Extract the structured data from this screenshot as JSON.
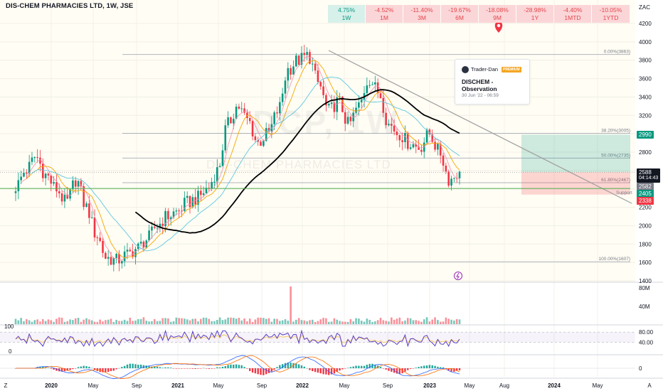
{
  "header": {
    "title": "DIS-CHEM PHARMACIES LTD, 1W, JSE",
    "currency": "ZAC"
  },
  "performance": [
    {
      "value": "4.75%",
      "label": "1W",
      "positive": true
    },
    {
      "value": "-4.52%",
      "label": "1M",
      "positive": false
    },
    {
      "value": "-11.40%",
      "label": "3M",
      "positive": false
    },
    {
      "value": "-19.67%",
      "label": "6M",
      "positive": false
    },
    {
      "value": "-18.08%",
      "label": "9M",
      "positive": false
    },
    {
      "value": "-28.98%",
      "label": "1Y",
      "positive": false
    },
    {
      "value": "-4.40%",
      "label": "1MTD",
      "positive": false
    },
    {
      "value": "-10.05%",
      "label": "1YTD",
      "positive": false
    }
  ],
  "idea_card": {
    "author": "Trader-Dan",
    "badge": "PREMIUM",
    "title": "DISCHEM - Observation",
    "date": "30 Jun '22 - 06:59"
  },
  "watermark": {
    "symbol": "DCP, 1W",
    "name": "DIS-CHEM PHARMACIES LTD"
  },
  "price_tags": {
    "target": "2990",
    "last": "2588",
    "countdown": "04:14:43",
    "current": "2582",
    "support": "2405",
    "stop": "2338"
  },
  "colors": {
    "up": "#089981",
    "down": "#f23645",
    "ma_black": "#000000",
    "ma_blue": "#5fc7e0",
    "ma_orange": "#f7a600",
    "ma_pink": "#f48fb1",
    "support_line": "#4caf50",
    "trendline": "#9e9e9e"
  },
  "chart_data": {
    "type": "candlestick",
    "y_axis_ticks": [
      1400,
      1600,
      1800,
      2000,
      2200,
      2400,
      2600,
      2800,
      3000,
      3200,
      3400,
      3600,
      3800,
      4000,
      4200
    ],
    "ylim": [
      1400,
      4200
    ],
    "x_axis_labels": [
      "Z",
      "2020",
      "May",
      "Sep",
      "2021",
      "May",
      "Sep",
      "2022",
      "May",
      "Sep",
      "2023",
      "May",
      "Aug",
      "2024",
      "May",
      "A"
    ],
    "fibonacci": [
      {
        "level": "0.00%",
        "price": 3863
      },
      {
        "level": "38.20%",
        "price": 3005
      },
      {
        "level": "50.00%",
        "price": 2735
      },
      {
        "level": "61.80%",
        "price": 2467
      },
      {
        "level": "100.00%",
        "price": 1607
      }
    ],
    "support_label": "Support",
    "support_price": 2405,
    "position": {
      "entry": 2582,
      "target": 2990,
      "stop": 2338
    },
    "key_prices": [
      2425,
      2600,
      2750,
      2550,
      2400,
      2250,
      2500,
      2200,
      1900,
      1650,
      1620,
      1680,
      1750,
      1850,
      2000,
      2100,
      2150,
      2250,
      2300,
      2400,
      2600,
      3100,
      3300,
      3150,
      2900,
      3000,
      3250,
      3700,
      3800,
      3850,
      3550,
      3250,
      3350,
      3100,
      3300,
      3600,
      3450,
      3100,
      3000,
      2900,
      2850,
      3000,
      2800,
      2500,
      2588
    ],
    "volume_axis": [
      "80M",
      "40M"
    ],
    "rsi": {
      "top_label": "100",
      "bottom_label": "0",
      "axis": [
        "80.00",
        "40.00"
      ]
    },
    "macd": {
      "axis": [
        "0"
      ]
    }
  }
}
